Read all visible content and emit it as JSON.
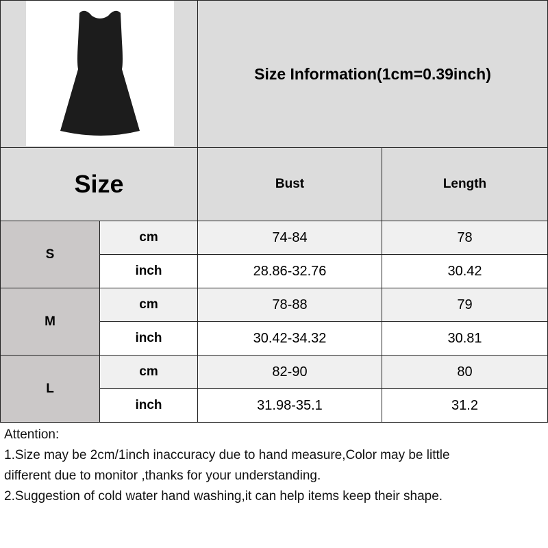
{
  "title": "Size Information(1cm=0.39inch)",
  "header": {
    "size": "Size",
    "bust": "Bust",
    "length": "Length"
  },
  "rows": [
    {
      "size": "S",
      "cm": {
        "unit": "cm",
        "bust": "74-84",
        "length": "78"
      },
      "inch": {
        "unit": "inch",
        "bust": "28.86-32.76",
        "length": "30.42"
      }
    },
    {
      "size": "M",
      "cm": {
        "unit": "cm",
        "bust": "78-88",
        "length": "79"
      },
      "inch": {
        "unit": "inch",
        "bust": "30.42-34.32",
        "length": "30.81"
      }
    },
    {
      "size": "L",
      "cm": {
        "unit": "cm",
        "bust": "82-90",
        "length": "80"
      },
      "inch": {
        "unit": "inch",
        "bust": "31.98-35.1",
        "length": "31.2"
      }
    }
  ],
  "notes": [
    "Attention:",
    "1.Size may be 2cm/1inch inaccuracy due to hand measure,Color may be little",
    "different due to monitor ,thanks for your understanding.",
    "2.Suggestion of cold water hand washing,it can help items keep their shape."
  ],
  "colors": {
    "header": "#dcdcdc",
    "size_cell": "#cbc8c8",
    "cm_row": "#f0f0f0"
  }
}
